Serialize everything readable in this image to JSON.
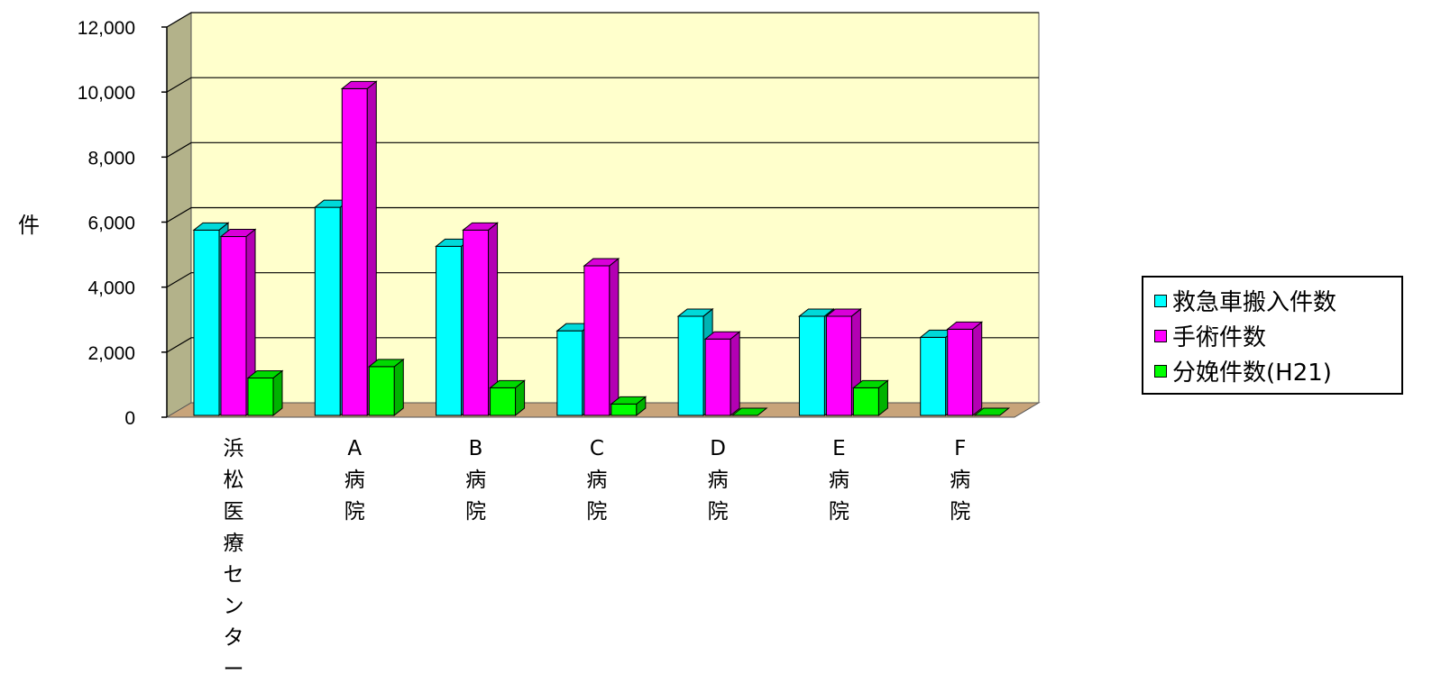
{
  "chart_data": {
    "type": "bar",
    "style": "3d-clustered-column",
    "ylabel": "件",
    "ylim": [
      0,
      12000
    ],
    "yticks": [
      0,
      2000,
      4000,
      6000,
      8000,
      10000,
      12000
    ],
    "ytick_labels": [
      "0",
      "2,000",
      "4,000",
      "6,000",
      "8,000",
      "10,000",
      "12,000"
    ],
    "grid": true,
    "legend_position": "right",
    "categories": [
      "浜松医療センター",
      "A病院",
      "B病院",
      "C病院",
      "D病院",
      "E病院",
      "F病院"
    ],
    "series": [
      {
        "name": "救急車搬入件数",
        "color": "#00ffff",
        "values": [
          5700,
          6400,
          5200,
          2600,
          3050,
          3050,
          2400
        ]
      },
      {
        "name": "手術件数",
        "color": "#ff00ff",
        "values": [
          5500,
          10050,
          5700,
          4600,
          2350,
          3050,
          2650
        ]
      },
      {
        "name": "分娩件数(H21)",
        "color": "#00ff00",
        "values": [
          1150,
          1500,
          850,
          350,
          0,
          850,
          0
        ]
      }
    ],
    "colors": {
      "wall": "#ffffcc",
      "side_wall": "#b3b28a",
      "floor": "#c8a47a"
    }
  }
}
